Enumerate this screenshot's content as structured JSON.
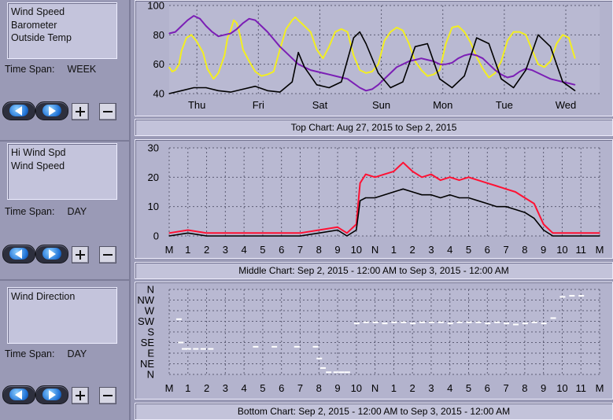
{
  "panels": [
    {
      "legend": [
        "Wind Speed",
        "Barometer",
        "Outside Temp"
      ],
      "time_span_label": "Time Span:",
      "time_span_value": "WEEK",
      "caption": "Top Chart:  Aug 27, 2015  to  Sep 2, 2015",
      "y_ticks": [
        "100",
        "80",
        "60",
        "40"
      ],
      "x_ticks": [
        "Thu",
        "Fri",
        "Sat",
        "Sun",
        "Mon",
        "Tue",
        "Wed"
      ]
    },
    {
      "legend": [
        "Hi Wind Spd",
        "Wind Speed"
      ],
      "time_span_label": "Time Span:",
      "time_span_value": "DAY",
      "caption": "Middle Chart:  Sep 2, 2015 - 12:00 AM  to  Sep 3, 2015 - 12:00 AM",
      "y_ticks": [
        "30",
        "20",
        "10",
        "0"
      ],
      "x_ticks": [
        "M",
        "1",
        "2",
        "3",
        "4",
        "5",
        "6",
        "7",
        "8",
        "9",
        "10",
        "N",
        "1",
        "2",
        "3",
        "4",
        "5",
        "6",
        "7",
        "8",
        "9",
        "10",
        "11",
        "M"
      ]
    },
    {
      "legend": [
        "Wind Direction"
      ],
      "time_span_label": "Time Span:",
      "time_span_value": "DAY",
      "caption": "Bottom Chart:  Sep 2, 2015 - 12:00 AM  to  Sep 3, 2015 - 12:00 AM",
      "y_ticks": [
        "N",
        "NW",
        "W",
        "SW",
        "S",
        "SE",
        "E",
        "NE",
        "N"
      ],
      "x_ticks": [
        "M",
        "1",
        "2",
        "3",
        "4",
        "5",
        "6",
        "7",
        "8",
        "9",
        "10",
        "N",
        "1",
        "2",
        "3",
        "4",
        "5",
        "6",
        "7",
        "8",
        "9",
        "10",
        "11",
        "M"
      ]
    }
  ],
  "icons": {
    "back": "left-arrow-icon",
    "forward": "right-arrow-icon",
    "zoom_in": "plus-icon",
    "zoom_out": "minus-icon"
  },
  "colors": {
    "wind_speed": "#000000",
    "barometer": "#7b1fb5",
    "outside_temp": "#f2ee22",
    "hi_wind_speed": "#ff1133",
    "wind_direction": "#ffffff"
  },
  "chart_data": [
    {
      "type": "line",
      "title": "",
      "ylim": [
        40,
        100
      ],
      "y_ticks": [
        40,
        60,
        80,
        100
      ],
      "categories": [
        "Thu",
        "Fri",
        "Sat",
        "Sun",
        "Mon",
        "Tue",
        "Wed"
      ],
      "grid": true,
      "series": [
        {
          "name": "Outside Temp",
          "color": "#f2ee22",
          "x": [
            0,
            0.05,
            0.1,
            0.16,
            0.2,
            0.28,
            0.36,
            0.44,
            0.55,
            0.62,
            0.72,
            0.8,
            0.9,
            0.95,
            1.0,
            1.05,
            1.1,
            1.15,
            1.2,
            1.3,
            1.4,
            1.5,
            1.6,
            1.7,
            1.8,
            1.9,
            2.0,
            2.05,
            2.1,
            2.15,
            2.2,
            2.3,
            2.4,
            2.5,
            2.6,
            2.7,
            2.8,
            2.9,
            3.0,
            3.1,
            3.2,
            3.3,
            3.4,
            3.5,
            3.6,
            3.7,
            3.8,
            3.9,
            4.0,
            4.1,
            4.2,
            4.3,
            4.4,
            4.5,
            4.6,
            4.7,
            4.8,
            4.9,
            5.0,
            5.1,
            5.2,
            5.3,
            5.4,
            5.5,
            5.6,
            5.7,
            5.8,
            5.9,
            6.0,
            6.1,
            6.2,
            6.3,
            6.4,
            6.5,
            6.6
          ],
          "y": [
            58,
            55,
            56,
            60,
            69,
            78,
            80,
            76,
            68,
            57,
            50,
            54,
            66,
            78,
            83,
            90,
            88,
            80,
            70,
            62,
            55,
            52,
            53,
            55,
            70,
            84,
            90,
            92,
            90,
            88,
            86,
            82,
            70,
            64,
            72,
            82,
            84,
            82,
            66,
            56,
            54,
            55,
            60,
            76,
            82,
            85,
            83,
            74,
            62,
            56,
            52,
            53,
            56,
            74,
            85,
            86,
            82,
            75,
            65,
            57,
            51,
            54,
            62,
            76,
            82,
            82,
            80,
            70,
            60,
            58,
            62,
            74,
            80,
            78,
            64
          ]
        },
        {
          "name": "Barometer",
          "color": "#7b1fb5",
          "x": [
            0,
            0.1,
            0.2,
            0.3,
            0.4,
            0.5,
            0.6,
            0.7,
            0.8,
            0.9,
            1.0,
            1.1,
            1.2,
            1.3,
            1.4,
            1.5,
            1.6,
            1.7,
            1.8,
            1.9,
            2.0,
            2.1,
            2.2,
            2.3,
            2.4,
            2.5,
            2.6,
            2.7,
            2.8,
            2.9,
            3.0,
            3.1,
            3.2,
            3.3,
            3.4,
            3.5,
            3.6,
            3.7,
            3.8,
            3.9,
            4.0,
            4.1,
            4.2,
            4.3,
            4.4,
            4.5,
            4.6,
            4.7,
            4.8,
            4.9,
            5.0,
            5.1,
            5.2,
            5.3,
            5.4,
            5.5,
            5.6,
            5.7,
            5.8,
            5.9,
            6.0,
            6.1,
            6.2,
            6.3,
            6.4,
            6.5,
            6.6
          ],
          "y": [
            81,
            82,
            86,
            90,
            93,
            91,
            86,
            82,
            79,
            80,
            81,
            84,
            88,
            91,
            90,
            86,
            82,
            77,
            72,
            68,
            64,
            60,
            58,
            56,
            55,
            54,
            53,
            52,
            51,
            50,
            47,
            44,
            42,
            43,
            46,
            50,
            54,
            58,
            60,
            62,
            63,
            64,
            63,
            62,
            60,
            60,
            61,
            64,
            66,
            67,
            66,
            64,
            60,
            56,
            53,
            51,
            52,
            55,
            57,
            56,
            54,
            52,
            50,
            49,
            48,
            47,
            46
          ]
        },
        {
          "name": "Wind Speed",
          "color": "#000000",
          "x": [
            0,
            0.2,
            0.4,
            0.6,
            0.8,
            1.0,
            1.2,
            1.4,
            1.6,
            1.8,
            2.0,
            2.1,
            2.2,
            2.3,
            2.4,
            2.6,
            2.8,
            3.0,
            3.1,
            3.2,
            3.4,
            3.6,
            3.8,
            4.0,
            4.2,
            4.4,
            4.6,
            4.8,
            5.0,
            5.2,
            5.4,
            5.6,
            5.8,
            6.0,
            6.2,
            6.4,
            6.6
          ],
          "y": [
            40,
            42,
            44,
            44,
            42,
            41,
            43,
            45,
            42,
            41,
            48,
            68,
            58,
            52,
            46,
            44,
            48,
            78,
            82,
            74,
            54,
            44,
            48,
            72,
            74,
            50,
            44,
            52,
            78,
            74,
            50,
            44,
            56,
            80,
            72,
            48,
            42
          ]
        }
      ]
    },
    {
      "type": "line",
      "title": "",
      "ylim": [
        0,
        30
      ],
      "y_ticks": [
        0,
        10,
        20,
        30
      ],
      "categories": [
        "M",
        "1",
        "2",
        "3",
        "4",
        "5",
        "6",
        "7",
        "8",
        "9",
        "10",
        "N",
        "1",
        "2",
        "3",
        "4",
        "5",
        "6",
        "7",
        "8",
        "9",
        "10",
        "11",
        "M"
      ],
      "grid": true,
      "series": [
        {
          "name": "Hi Wind Spd",
          "color": "#ff1133",
          "x": [
            0,
            1,
            2,
            3,
            4,
            5,
            6,
            7,
            8,
            9,
            9.5,
            10,
            10.2,
            10.5,
            11,
            11.5,
            12,
            12.5,
            13,
            13.5,
            14,
            14.5,
            15,
            15.5,
            16,
            16.5,
            17,
            17.5,
            18,
            18.5,
            19,
            19.5,
            20,
            20.5,
            21,
            22,
            23
          ],
          "y": [
            1,
            2,
            1,
            1,
            1,
            1,
            1,
            1,
            2,
            3,
            1,
            4,
            18,
            21,
            20,
            21,
            22,
            25,
            22,
            20,
            21,
            19,
            20,
            19,
            20,
            19,
            18,
            17,
            16,
            15,
            13,
            11,
            4,
            1,
            1,
            1,
            1
          ]
        },
        {
          "name": "Wind Speed",
          "color": "#000000",
          "x": [
            0,
            1,
            2,
            3,
            4,
            5,
            6,
            7,
            8,
            9,
            9.5,
            10,
            10.2,
            10.5,
            11,
            11.5,
            12,
            12.5,
            13,
            13.5,
            14,
            14.5,
            15,
            15.5,
            16,
            16.5,
            17,
            17.5,
            18,
            18.5,
            19,
            19.5,
            20,
            20.5,
            21,
            22,
            23
          ],
          "y": [
            0,
            1,
            0,
            0,
            0,
            0,
            0,
            0,
            1,
            2,
            0,
            2,
            12,
            13,
            13,
            14,
            15,
            16,
            15,
            14,
            14,
            13,
            14,
            13,
            13,
            12,
            11,
            10,
            10,
            9,
            8,
            6,
            2,
            0,
            0,
            0,
            0
          ]
        }
      ]
    },
    {
      "type": "scatter",
      "title": "",
      "y_categories": [
        "N",
        "NE",
        "E",
        "SE",
        "S",
        "SW",
        "W",
        "NW",
        "N"
      ],
      "categories": [
        "M",
        "1",
        "2",
        "3",
        "4",
        "5",
        "6",
        "7",
        "8",
        "9",
        "10",
        "N",
        "1",
        "2",
        "3",
        "4",
        "5",
        "6",
        "7",
        "8",
        "9",
        "10",
        "11",
        "M"
      ],
      "grid": true,
      "series": [
        {
          "name": "Wind Direction",
          "color": "#ffffff",
          "x": [
            0.5,
            0.6,
            0.8,
            1.0,
            1.4,
            1.8,
            2.2,
            4.6,
            5.6,
            6.8,
            7.8,
            8.0,
            8.2,
            8.5,
            8.9,
            9.2,
            9.5,
            10.0,
            10.5,
            11.0,
            11.5,
            12.0,
            12.5,
            13.0,
            13.5,
            14.0,
            14.5,
            15.0,
            15.5,
            16.0,
            16.5,
            17.0,
            17.5,
            18.0,
            18.5,
            19.0,
            19.5,
            20.0,
            20.5,
            21.0,
            21.5,
            22.0
          ],
          "y": [
            5.2,
            3.0,
            2.4,
            2.4,
            2.4,
            2.4,
            2.4,
            2.6,
            2.6,
            2.6,
            2.6,
            1.5,
            0.6,
            0.2,
            0.2,
            0.2,
            0.2,
            4.8,
            4.9,
            4.9,
            4.8,
            4.9,
            4.9,
            4.8,
            4.9,
            4.9,
            4.9,
            4.8,
            4.9,
            4.9,
            4.9,
            4.8,
            4.9,
            4.8,
            4.7,
            4.8,
            4.9,
            4.8,
            5.3,
            7.3,
            7.4,
            7.4
          ]
        }
      ]
    }
  ]
}
